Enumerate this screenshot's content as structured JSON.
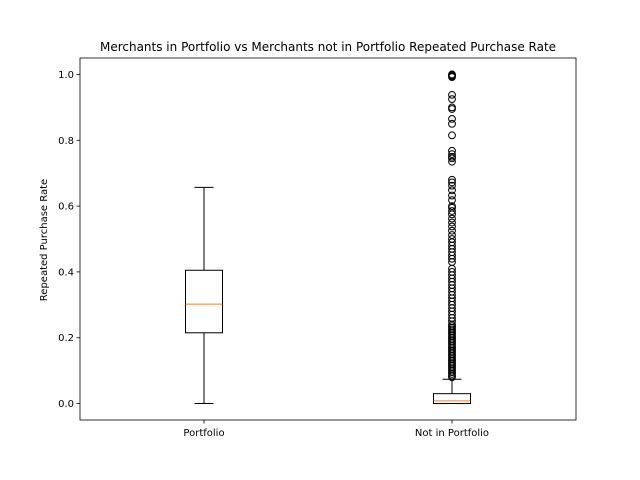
{
  "chart_data": {
    "type": "box",
    "title": "Merchants in Portfolio vs Merchants not in Portfolio Repeated Purchase Rate",
    "xlabel": "",
    "ylabel": "Repeated Purchase Rate",
    "ylim": [
      -0.05,
      1.05
    ],
    "yticks": [
      0.0,
      0.2,
      0.4,
      0.6,
      0.8,
      1.0
    ],
    "ytick_labels": [
      "0.0",
      "0.2",
      "0.4",
      "0.6",
      "0.8",
      "1.0"
    ],
    "categories": [
      "Portfolio",
      "Not in Portfolio"
    ],
    "median_color": "#ff7f0e",
    "series": [
      {
        "whisker_low": 0.0,
        "q1": 0.215,
        "median": 0.302,
        "q3": 0.405,
        "whisker_high": 0.657,
        "fliers": []
      },
      {
        "whisker_low": 0.0,
        "q1": 0.0,
        "median": 0.008,
        "q3": 0.03,
        "whisker_high": 0.074,
        "fliers": [
          1.0,
          0.998,
          0.995,
          0.992,
          0.938,
          0.925,
          0.9,
          0.895,
          0.865,
          0.85,
          0.815,
          0.768,
          0.758,
          0.75,
          0.745,
          0.735,
          0.68,
          0.672,
          0.662,
          0.648,
          0.632,
          0.618,
          0.6,
          0.595,
          0.585,
          0.575,
          0.562,
          0.55,
          0.538,
          0.525,
          0.512,
          0.5,
          0.49,
          0.48,
          0.47,
          0.46,
          0.45,
          0.44,
          0.43,
          0.41,
          0.4,
          0.39,
          0.38,
          0.37,
          0.36,
          0.35,
          0.34,
          0.33,
          0.32,
          0.31,
          0.3,
          0.29,
          0.28,
          0.27,
          0.26,
          0.25,
          0.24,
          0.235,
          0.23,
          0.225,
          0.22,
          0.215,
          0.21,
          0.205,
          0.2,
          0.195,
          0.19,
          0.185,
          0.18,
          0.175,
          0.17,
          0.165,
          0.16,
          0.155,
          0.15,
          0.145,
          0.14,
          0.135,
          0.13,
          0.125,
          0.12,
          0.115,
          0.11,
          0.105,
          0.1,
          0.095,
          0.09,
          0.085,
          0.08
        ]
      }
    ]
  }
}
